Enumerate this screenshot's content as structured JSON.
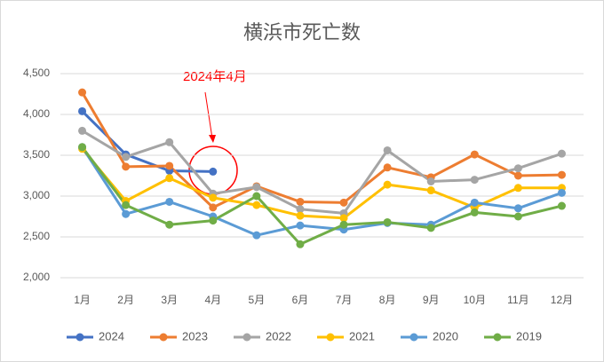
{
  "chart_data": {
    "type": "line",
    "title": "横浜市死亡数",
    "categories": [
      "1月",
      "2月",
      "3月",
      "4月",
      "5月",
      "6月",
      "7月",
      "8月",
      "9月",
      "10月",
      "11月",
      "12月"
    ],
    "series": [
      {
        "name": "2024",
        "color": "#4472c4",
        "values": [
          4040,
          3510,
          3310,
          3300,
          null,
          null,
          null,
          null,
          null,
          null,
          null,
          null
        ]
      },
      {
        "name": "2023",
        "color": "#ed7d31",
        "values": [
          4270,
          3360,
          3370,
          2860,
          3120,
          2930,
          2920,
          3350,
          3230,
          3510,
          3250,
          3260
        ]
      },
      {
        "name": "2022",
        "color": "#a5a5a5",
        "values": [
          3800,
          3480,
          3660,
          3030,
          3110,
          2840,
          2790,
          3560,
          3180,
          3200,
          3340,
          3520
        ]
      },
      {
        "name": "2021",
        "color": "#ffc000",
        "values": [
          3580,
          2940,
          3220,
          2980,
          2890,
          2760,
          2730,
          3140,
          3070,
          2860,
          3100,
          3100
        ]
      },
      {
        "name": "2020",
        "color": "#5b9bd5",
        "values": [
          3600,
          2780,
          2930,
          2750,
          2520,
          2640,
          2590,
          2670,
          2650,
          2920,
          2850,
          3040
        ]
      },
      {
        "name": "2019",
        "color": "#70ad47",
        "values": [
          3600,
          2890,
          2650,
          2700,
          3000,
          2410,
          2650,
          2680,
          2610,
          2800,
          2750,
          2880
        ]
      }
    ],
    "ylim": [
      2000,
      4500
    ],
    "yticks": [
      {
        "value": 2000,
        "label": "2,000"
      },
      {
        "value": 2500,
        "label": "2,500"
      },
      {
        "value": 3000,
        "label": "3,000"
      },
      {
        "value": 3500,
        "label": "3,500"
      },
      {
        "value": 4000,
        "label": "4,000"
      },
      {
        "value": 4500,
        "label": "4,500"
      }
    ],
    "grid": true,
    "legend": "bottom",
    "annotations": [
      {
        "text": "2024年4月",
        "color": "#ff0000"
      }
    ]
  }
}
